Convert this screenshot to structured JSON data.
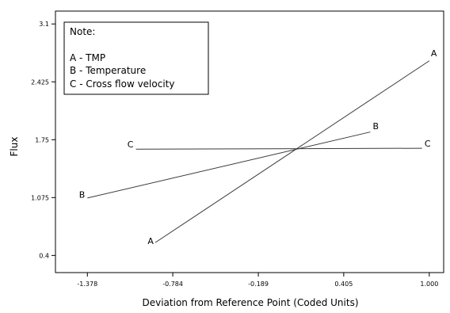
{
  "chart_data": {
    "type": "line",
    "title": "",
    "xlabel": "Deviation from Reference Point (Coded Units)",
    "ylabel": "Flux",
    "xlim": [
      -1.6,
      1.1
    ],
    "ylim": [
      0.2,
      3.25
    ],
    "x_ticks": [
      -1.378,
      -0.784,
      -0.189,
      0.405,
      1.0
    ],
    "x_tick_labels": [
      "-1.378",
      "-0.784",
      "-0.189",
      "0.405",
      "1.000"
    ],
    "y_ticks": [
      0.4,
      1.075,
      1.75,
      2.425,
      3.1
    ],
    "y_tick_labels": [
      "0.4",
      "1.075",
      "1.75",
      "2.425",
      "3.1"
    ],
    "grid": false,
    "series": [
      {
        "name": "A",
        "x": [
          -0.906,
          1.0
        ],
        "y": [
          0.55,
          2.67
        ]
      },
      {
        "name": "B",
        "x": [
          -1.378,
          0.59
        ],
        "y": [
          1.07,
          1.84
        ]
      },
      {
        "name": "C",
        "x": [
          -1.04,
          0.95
        ],
        "y": [
          1.64,
          1.65
        ]
      }
    ],
    "legend": {
      "title": "Note:",
      "entries": [
        "A - TMP",
        "B - Temperature",
        "C - Cross flow velocity"
      ],
      "placement": "top-left"
    }
  }
}
